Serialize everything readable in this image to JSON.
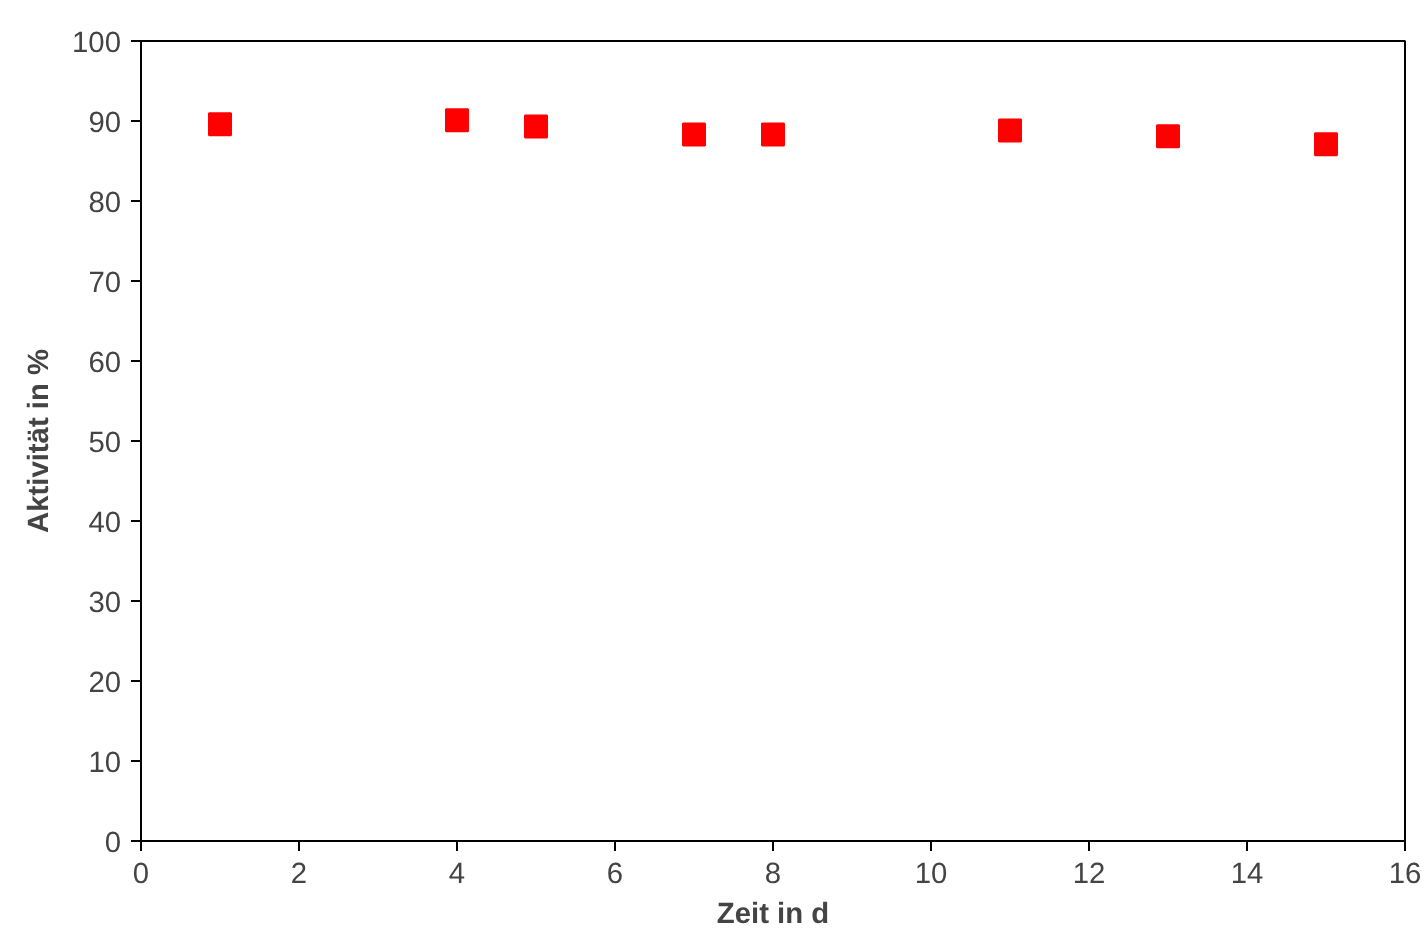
{
  "chart_data": {
    "type": "scatter",
    "xlabel": "Zeit in d",
    "ylabel": "Aktivität in %",
    "x": [
      1,
      4,
      5,
      7,
      8,
      11,
      13,
      15
    ],
    "series": [
      {
        "color": "#ff0000",
        "values": [
          89.6,
          90.1,
          89.3,
          88.3,
          88.3,
          88.8,
          88.1,
          87.1
        ]
      }
    ],
    "marker": "square",
    "xlim": [
      0,
      16
    ],
    "xticks": [
      0,
      2,
      4,
      6,
      8,
      10,
      12,
      14,
      16
    ],
    "ylim": [
      0,
      100
    ],
    "yticks": [
      0,
      10,
      20,
      30,
      40,
      50,
      60,
      70,
      80,
      90,
      100
    ],
    "grid": false
  }
}
